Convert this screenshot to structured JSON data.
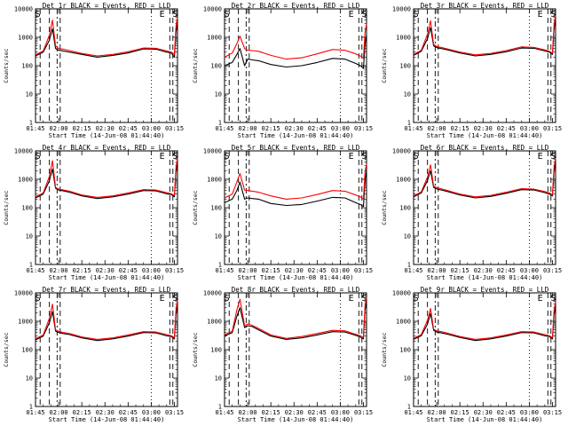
{
  "chart_data": [
    {
      "type": "line",
      "title": "Det 1r BLACK = Events, RED = LLD",
      "xlabel": "Start Time (14-Jun-08 01:44:40)",
      "ylabel": "Counts/sec",
      "yscale": "log",
      "ylim": [
        1,
        10000
      ],
      "x_ticks": [
        "01:45",
        "02:00",
        "02:15",
        "02:30",
        "02:45",
        "03:00",
        "03:15"
      ],
      "y_ticks": [
        "1",
        "10",
        "100",
        "1000",
        "10000"
      ],
      "corner_letters": [
        "S",
        "E",
        "S"
      ],
      "series": [
        {
          "color": "#000000",
          "key": "black",
          "x": [
            0,
            5,
            9,
            11,
            13,
            15,
            18,
            22,
            30,
            40,
            50,
            60,
            70,
            78,
            85,
            88,
            90,
            91,
            92
          ],
          "y": [
            220,
            300,
            800,
            2000,
            400,
            350,
            330,
            300,
            250,
            200,
            230,
            280,
            390,
            380,
            300,
            280,
            200,
            1500,
            3000
          ]
        },
        {
          "color": "#ff0000",
          "key": "red",
          "x": [
            0,
            5,
            9,
            11,
            13,
            15,
            18,
            22,
            30,
            40,
            50,
            60,
            70,
            78,
            85,
            88,
            90,
            91,
            92
          ],
          "y": [
            240,
            330,
            1200,
            4000,
            500,
            400,
            380,
            340,
            270,
            220,
            250,
            310,
            420,
            410,
            330,
            300,
            250,
            2500,
            5000
          ]
        }
      ]
    },
    {
      "type": "line",
      "title": "Det 2r BLACK = Events, RED = LLD",
      "xlabel": "Start Time (14-Jun-08 01:44:40)",
      "ylabel": "Counts/sec",
      "yscale": "log",
      "ylim": [
        1,
        10000
      ],
      "x_ticks": [
        "01:45",
        "02:00",
        "02:15",
        "02:30",
        "02:45",
        "03:00",
        "03:15"
      ],
      "y_ticks": [
        "1",
        "10",
        "100",
        "1000",
        "10000"
      ],
      "corner_letters": [
        "S",
        "E",
        "S"
      ],
      "series": [
        {
          "color": "#000000",
          "key": "black",
          "x": [
            0,
            5,
            8,
            10,
            13,
            15,
            18,
            22,
            30,
            40,
            50,
            60,
            70,
            78,
            85,
            88,
            90,
            91,
            92
          ],
          "y": [
            100,
            130,
            250,
            400,
            100,
            170,
            160,
            150,
            110,
            90,
            100,
            130,
            180,
            170,
            120,
            100,
            80,
            600,
            1200
          ]
        },
        {
          "color": "#ff0000",
          "key": "red",
          "x": [
            0,
            5,
            8,
            10,
            13,
            15,
            18,
            22,
            30,
            40,
            50,
            60,
            70,
            78,
            85,
            88,
            90,
            91,
            92
          ],
          "y": [
            200,
            280,
            600,
            1100,
            400,
            350,
            340,
            320,
            230,
            170,
            190,
            260,
            370,
            350,
            260,
            220,
            180,
            1500,
            3000
          ]
        }
      ]
    },
    {
      "type": "line",
      "title": "Det 3r BLACK = Events, RED = LLD",
      "xlabel": "Start Time (14-Jun-08 01:44:40)",
      "ylabel": "Counts/sec",
      "yscale": "log",
      "ylim": [
        1,
        10000
      ],
      "x_ticks": [
        "01:45",
        "02:00",
        "02:15",
        "02:30",
        "02:45",
        "03:00",
        "03:15"
      ],
      "y_ticks": [
        "1",
        "10",
        "100",
        "1000",
        "10000"
      ],
      "corner_letters": [
        "S",
        "E",
        "S"
      ],
      "series": [
        {
          "color": "#000000",
          "key": "black",
          "x": [
            0,
            5,
            9,
            11,
            13,
            15,
            18,
            22,
            30,
            40,
            50,
            60,
            70,
            78,
            85,
            88,
            90,
            91,
            92
          ],
          "y": [
            230,
            320,
            900,
            2200,
            500,
            430,
            400,
            360,
            280,
            220,
            250,
            310,
            420,
            410,
            330,
            300,
            250,
            2000,
            4000
          ]
        },
        {
          "color": "#ff0000",
          "key": "red",
          "x": [
            0,
            5,
            9,
            11,
            13,
            15,
            18,
            22,
            30,
            40,
            50,
            60,
            70,
            78,
            85,
            88,
            90,
            91,
            92
          ],
          "y": [
            250,
            350,
            1300,
            3800,
            560,
            470,
            440,
            390,
            300,
            240,
            270,
            340,
            460,
            440,
            360,
            320,
            280,
            2800,
            6000
          ]
        }
      ]
    },
    {
      "type": "line",
      "title": "Det 4r BLACK = Events, RED = LLD",
      "xlabel": "Start Time (14-Jun-08 01:44:40)",
      "ylabel": "Counts/sec",
      "yscale": "log",
      "ylim": [
        1,
        10000
      ],
      "x_ticks": [
        "01:45",
        "02:00",
        "02:15",
        "02:30",
        "02:45",
        "03:00",
        "03:15"
      ],
      "y_ticks": [
        "1",
        "10",
        "100",
        "1000",
        "10000"
      ],
      "corner_letters": [
        "S",
        "E",
        "S"
      ],
      "series": [
        {
          "color": "#000000",
          "key": "black",
          "x": [
            0,
            5,
            9,
            11,
            13,
            15,
            18,
            22,
            30,
            40,
            50,
            60,
            70,
            78,
            85,
            88,
            90,
            91,
            92
          ],
          "y": [
            220,
            300,
            900,
            2300,
            480,
            420,
            390,
            350,
            260,
            210,
            240,
            300,
            400,
            390,
            310,
            290,
            240,
            1800,
            3500
          ]
        },
        {
          "color": "#ff0000",
          "key": "red",
          "x": [
            0,
            5,
            9,
            11,
            13,
            15,
            18,
            22,
            30,
            40,
            50,
            60,
            70,
            78,
            85,
            88,
            90,
            91,
            92
          ],
          "y": [
            240,
            330,
            1300,
            4500,
            520,
            450,
            420,
            380,
            280,
            230,
            260,
            330,
            430,
            420,
            340,
            310,
            270,
            2600,
            5500
          ]
        }
      ]
    },
    {
      "type": "line",
      "title": "Det 5r BLACK = Events, RED = LLD",
      "xlabel": "Start Time (14-Jun-08 01:44:40)",
      "ylabel": "Counts/sec",
      "yscale": "log",
      "ylim": [
        1,
        10000
      ],
      "x_ticks": [
        "01:45",
        "02:00",
        "02:15",
        "02:30",
        "02:45",
        "03:00",
        "03:15"
      ],
      "y_ticks": [
        "1",
        "10",
        "100",
        "1000",
        "10000"
      ],
      "corner_letters": [
        "S",
        "E",
        "S"
      ],
      "series": [
        {
          "color": "#000000",
          "key": "black",
          "x": [
            0,
            5,
            8,
            10,
            13,
            15,
            18,
            22,
            30,
            40,
            50,
            60,
            70,
            78,
            85,
            88,
            90,
            91,
            92
          ],
          "y": [
            150,
            200,
            400,
            800,
            200,
            220,
            210,
            200,
            140,
            120,
            130,
            170,
            230,
            220,
            150,
            130,
            110,
            900,
            2000
          ]
        },
        {
          "color": "#ff0000",
          "key": "red",
          "x": [
            0,
            5,
            8,
            10,
            13,
            15,
            18,
            22,
            30,
            40,
            50,
            60,
            70,
            78,
            85,
            88,
            90,
            91,
            92
          ],
          "y": [
            220,
            300,
            800,
            1600,
            420,
            400,
            380,
            350,
            260,
            200,
            220,
            290,
            400,
            380,
            280,
            240,
            200,
            1800,
            3500
          ]
        }
      ]
    },
    {
      "type": "line",
      "title": "Det 6r BLACK = Events, RED = LLD",
      "xlabel": "Start Time (14-Jun-08 01:44:40)",
      "ylabel": "Counts/sec",
      "yscale": "log",
      "ylim": [
        1,
        10000
      ],
      "x_ticks": [
        "01:45",
        "02:00",
        "02:15",
        "02:30",
        "02:45",
        "03:00",
        "03:15"
      ],
      "y_ticks": [
        "1",
        "10",
        "100",
        "1000",
        "10000"
      ],
      "corner_letters": [
        "S",
        "E",
        "S"
      ],
      "series": [
        {
          "color": "#000000",
          "key": "black",
          "x": [
            0,
            5,
            9,
            11,
            13,
            15,
            18,
            22,
            30,
            40,
            50,
            60,
            70,
            78,
            85,
            88,
            90,
            91,
            92
          ],
          "y": [
            240,
            330,
            900,
            2000,
            520,
            460,
            420,
            370,
            280,
            220,
            250,
            320,
            430,
            420,
            340,
            300,
            260,
            1900,
            3800
          ]
        },
        {
          "color": "#ff0000",
          "key": "red",
          "x": [
            0,
            5,
            9,
            11,
            13,
            15,
            18,
            22,
            30,
            40,
            50,
            60,
            70,
            78,
            85,
            88,
            90,
            91,
            92
          ],
          "y": [
            260,
            360,
            1200,
            3200,
            580,
            500,
            460,
            400,
            300,
            240,
            270,
            350,
            470,
            450,
            370,
            330,
            290,
            2700,
            5500
          ]
        }
      ]
    },
    {
      "type": "line",
      "title": "Det 7r BLACK = Events, RED = LLD",
      "xlabel": "Start Time (14-Jun-08 01:44:40)",
      "ylabel": "Counts/sec",
      "yscale": "log",
      "ylim": [
        1,
        10000
      ],
      "x_ticks": [
        "01:45",
        "02:00",
        "02:15",
        "02:30",
        "02:45",
        "03:00",
        "03:15"
      ],
      "y_ticks": [
        "1",
        "10",
        "100",
        "1000",
        "10000"
      ],
      "corner_letters": [
        "S",
        "E",
        "S"
      ],
      "series": [
        {
          "color": "#000000",
          "key": "black",
          "x": [
            0,
            5,
            9,
            11,
            13,
            15,
            18,
            22,
            30,
            40,
            50,
            60,
            70,
            78,
            85,
            88,
            90,
            91,
            92
          ],
          "y": [
            220,
            300,
            900,
            2200,
            450,
            400,
            370,
            340,
            260,
            210,
            240,
            300,
            400,
            390,
            310,
            290,
            240,
            1800,
            3500
          ]
        },
        {
          "color": "#ff0000",
          "key": "red",
          "x": [
            0,
            5,
            9,
            11,
            13,
            15,
            18,
            22,
            30,
            40,
            50,
            60,
            70,
            78,
            85,
            88,
            90,
            91,
            92
          ],
          "y": [
            240,
            330,
            1300,
            4000,
            500,
            440,
            400,
            370,
            280,
            230,
            260,
            330,
            430,
            420,
            340,
            310,
            270,
            2600,
            5500
          ]
        }
      ]
    },
    {
      "type": "line",
      "title": "Det 8r BLACK = Events, RED = LLD",
      "xlabel": "Start Time (14-Jun-08 01:44:40)",
      "ylabel": "Counts/sec",
      "yscale": "log",
      "ylim": [
        1,
        10000
      ],
      "x_ticks": [
        "01:45",
        "02:00",
        "02:15",
        "02:30",
        "02:45",
        "03:00",
        "03:15"
      ],
      "y_ticks": [
        "1",
        "10",
        "100",
        "1000",
        "10000"
      ],
      "corner_letters": [
        "S",
        "E",
        "S"
      ],
      "series": [
        {
          "color": "#000000",
          "key": "black",
          "x": [
            0,
            5,
            8,
            10,
            13,
            15,
            18,
            22,
            30,
            40,
            50,
            60,
            70,
            78,
            85,
            88,
            90,
            91,
            92
          ],
          "y": [
            300,
            400,
            1500,
            3000,
            600,
            700,
            650,
            500,
            300,
            230,
            260,
            330,
            430,
            420,
            320,
            280,
            240,
            2500,
            5000
          ]
        },
        {
          "color": "#ff0000",
          "key": "red",
          "x": [
            0,
            5,
            8,
            10,
            13,
            15,
            18,
            22,
            30,
            40,
            50,
            60,
            70,
            78,
            85,
            88,
            90,
            91,
            92
          ],
          "y": [
            330,
            450,
            2500,
            6000,
            700,
            800,
            720,
            560,
            330,
            250,
            290,
            370,
            480,
            460,
            350,
            310,
            270,
            3500,
            7000
          ]
        }
      ]
    },
    {
      "type": "line",
      "title": "Det 9r BLACK = Events, RED = LLD",
      "xlabel": "Start Time (14-Jun-08 01:44:40)",
      "ylabel": "Counts/sec",
      "yscale": "log",
      "ylim": [
        1,
        10000
      ],
      "x_ticks": [
        "01:45",
        "02:00",
        "02:15",
        "02:30",
        "02:45",
        "03:00",
        "03:15"
      ],
      "y_ticks": [
        "1",
        "10",
        "100",
        "1000",
        "10000"
      ],
      "corner_letters": [
        "S",
        "E",
        "S"
      ],
      "series": [
        {
          "color": "#000000",
          "key": "black",
          "x": [
            0,
            5,
            9,
            11,
            13,
            15,
            18,
            22,
            30,
            40,
            50,
            60,
            70,
            78,
            85,
            88,
            90,
            91,
            92
          ],
          "y": [
            230,
            310,
            800,
            1900,
            480,
            420,
            390,
            350,
            270,
            210,
            240,
            300,
            400,
            390,
            310,
            290,
            240,
            1700,
            3400
          ]
        },
        {
          "color": "#ff0000",
          "key": "red",
          "x": [
            0,
            5,
            9,
            11,
            13,
            15,
            18,
            22,
            30,
            40,
            50,
            60,
            70,
            78,
            85,
            88,
            90,
            91,
            92
          ],
          "y": [
            250,
            340,
            1100,
            2800,
            530,
            460,
            430,
            380,
            290,
            230,
            260,
            330,
            430,
            420,
            340,
            310,
            270,
            2400,
            5000
          ]
        }
      ]
    }
  ]
}
